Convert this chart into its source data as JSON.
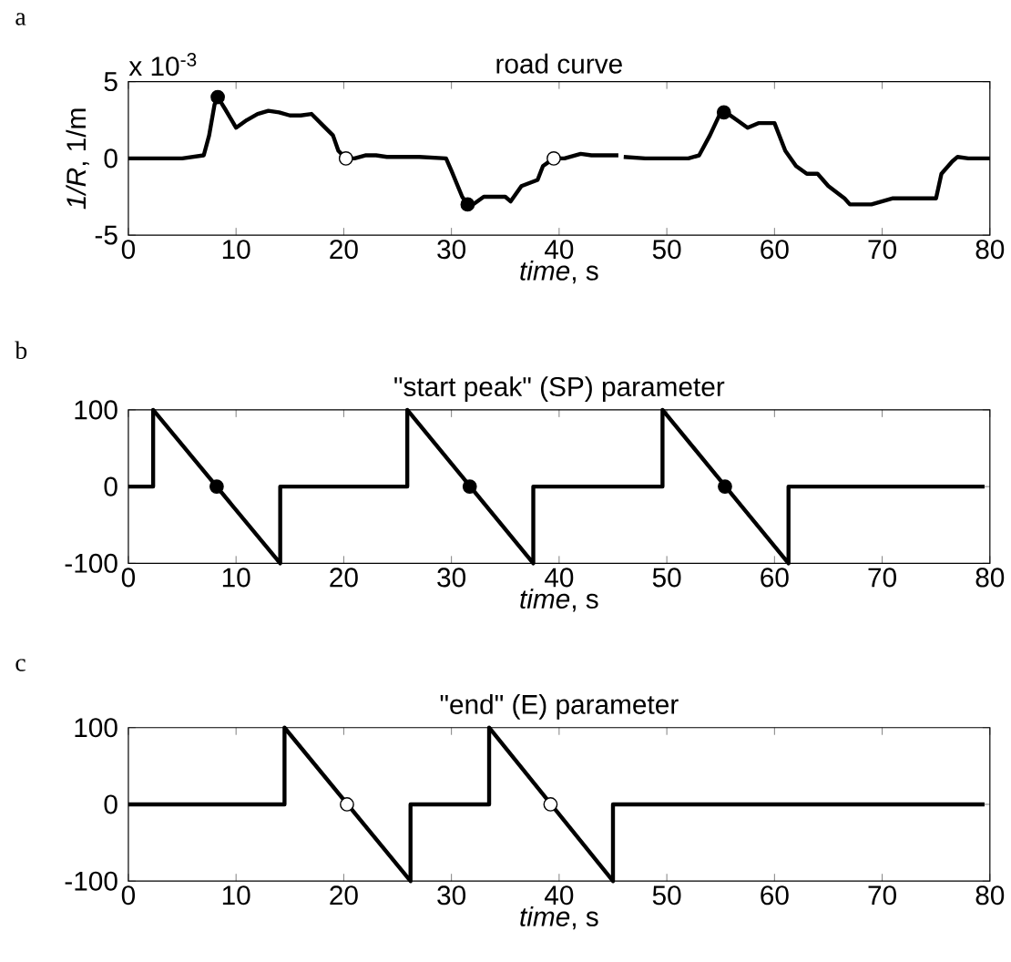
{
  "chart_data": [
    {
      "type": "line",
      "title": "road curve",
      "xlabel": "*time*, s",
      "ylabel": "*1/R*, 1/m",
      "annotations": [
        "a",
        "x 10$^{-3}$"
      ],
      "xlim": [
        0,
        80
      ],
      "ylim": [
        -5,
        5
      ],
      "xticks": [
        0,
        10,
        20,
        30,
        40,
        50,
        60,
        70,
        80
      ],
      "yticks": [
        -5,
        0,
        5
      ],
      "series": [
        {
          "color": "#000000",
          "x": [
            0,
            5,
            7,
            7.5,
            8,
            8.3,
            9,
            10,
            11,
            12,
            13,
            14,
            15,
            16,
            17,
            18,
            19,
            19.5,
            20.2,
            21,
            22,
            23,
            24,
            27,
            29.5,
            30,
            31,
            31.5,
            32,
            33,
            35,
            35.5,
            36.5,
            38,
            38.5,
            39.5,
            40.5,
            42,
            43,
            45.5,
            45.8,
            46,
            48,
            52,
            53,
            54,
            55,
            55.5,
            56.5,
            57.5,
            58.5,
            60,
            61,
            62,
            63,
            64,
            65,
            66.5,
            67,
            69,
            71,
            72,
            75,
            75.5,
            76.5,
            77,
            78,
            80
          ],
          "values": [
            0,
            0,
            0.2,
            1.5,
            3.5,
            4,
            3.2,
            2,
            2.5,
            2.9,
            3.1,
            3,
            2.8,
            2.8,
            2.9,
            2.2,
            1.5,
            0.5,
            0,
            0,
            0.2,
            0.2,
            0.1,
            0.1,
            0,
            -0.8,
            -2.5,
            -3,
            -3,
            -2.5,
            -2.5,
            -2.8,
            -1.8,
            -1.4,
            -0.5,
            0,
            0,
            0.3,
            0.2,
            0.2,
            null,
            0.1,
            0,
            0,
            0.2,
            1.5,
            3,
            3,
            2.5,
            2,
            2.3,
            2.3,
            0.5,
            -0.5,
            -1,
            -1,
            -1.8,
            -2.6,
            -3,
            -3,
            -2.6,
            -2.6,
            -2.6,
            -1,
            -0.2,
            0.1,
            0,
            0
          ]
        },
        {
          "type": "scatter",
          "marker": "circle",
          "color": "#000000",
          "x": [
            8.3,
            31.5,
            55.3
          ],
          "values": [
            4,
            -3,
            3
          ]
        },
        {
          "type": "scatter",
          "marker": "circle",
          "color": "#ffffff",
          "x": [
            20.2,
            39.5
          ],
          "values": [
            0,
            0
          ]
        }
      ]
    },
    {
      "type": "line",
      "title": "\"start peak\" (SP) parameter",
      "xlabel": "*time*, s",
      "annotations": [
        "b"
      ],
      "xlim": [
        0,
        80
      ],
      "ylim": [
        -100,
        100
      ],
      "xticks": [
        0,
        10,
        20,
        30,
        40,
        50,
        60,
        70,
        80
      ],
      "yticks": [
        -100,
        0,
        100
      ],
      "series": [
        {
          "color": "#000000",
          "x": [
            0,
            2.3,
            2.3,
            14.1,
            14.1,
            25.9,
            25.9,
            37.6,
            37.6,
            49.6,
            49.6,
            61.3,
            61.3,
            79.5
          ],
          "values": [
            0,
            0,
            100,
            -100,
            0,
            0,
            100,
            -100,
            0,
            0,
            100,
            -100,
            0,
            0
          ]
        },
        {
          "type": "scatter",
          "marker": "circle",
          "color": "#000000",
          "x": [
            8.2,
            31.7,
            55.4
          ],
          "values": [
            0,
            0,
            0
          ]
        }
      ]
    },
    {
      "type": "line",
      "title": "\"end\" (E) parameter",
      "xlabel": "*time*, s",
      "annotations": [
        "c"
      ],
      "xlim": [
        0,
        80
      ],
      "ylim": [
        -100,
        100
      ],
      "xticks": [
        0,
        10,
        20,
        30,
        40,
        50,
        60,
        70,
        80
      ],
      "yticks": [
        -100,
        0,
        100
      ],
      "series": [
        {
          "color": "#000000",
          "x": [
            0,
            14.5,
            14.5,
            26.2,
            26.2,
            33.5,
            33.5,
            45,
            45,
            79.5
          ],
          "values": [
            0,
            0,
            100,
            -100,
            0,
            0,
            100,
            -100,
            0,
            0
          ]
        },
        {
          "type": "scatter",
          "marker": "circle",
          "color": "#ffffff",
          "x": [
            20.3,
            39.2
          ],
          "values": [
            0,
            0
          ]
        }
      ]
    }
  ]
}
